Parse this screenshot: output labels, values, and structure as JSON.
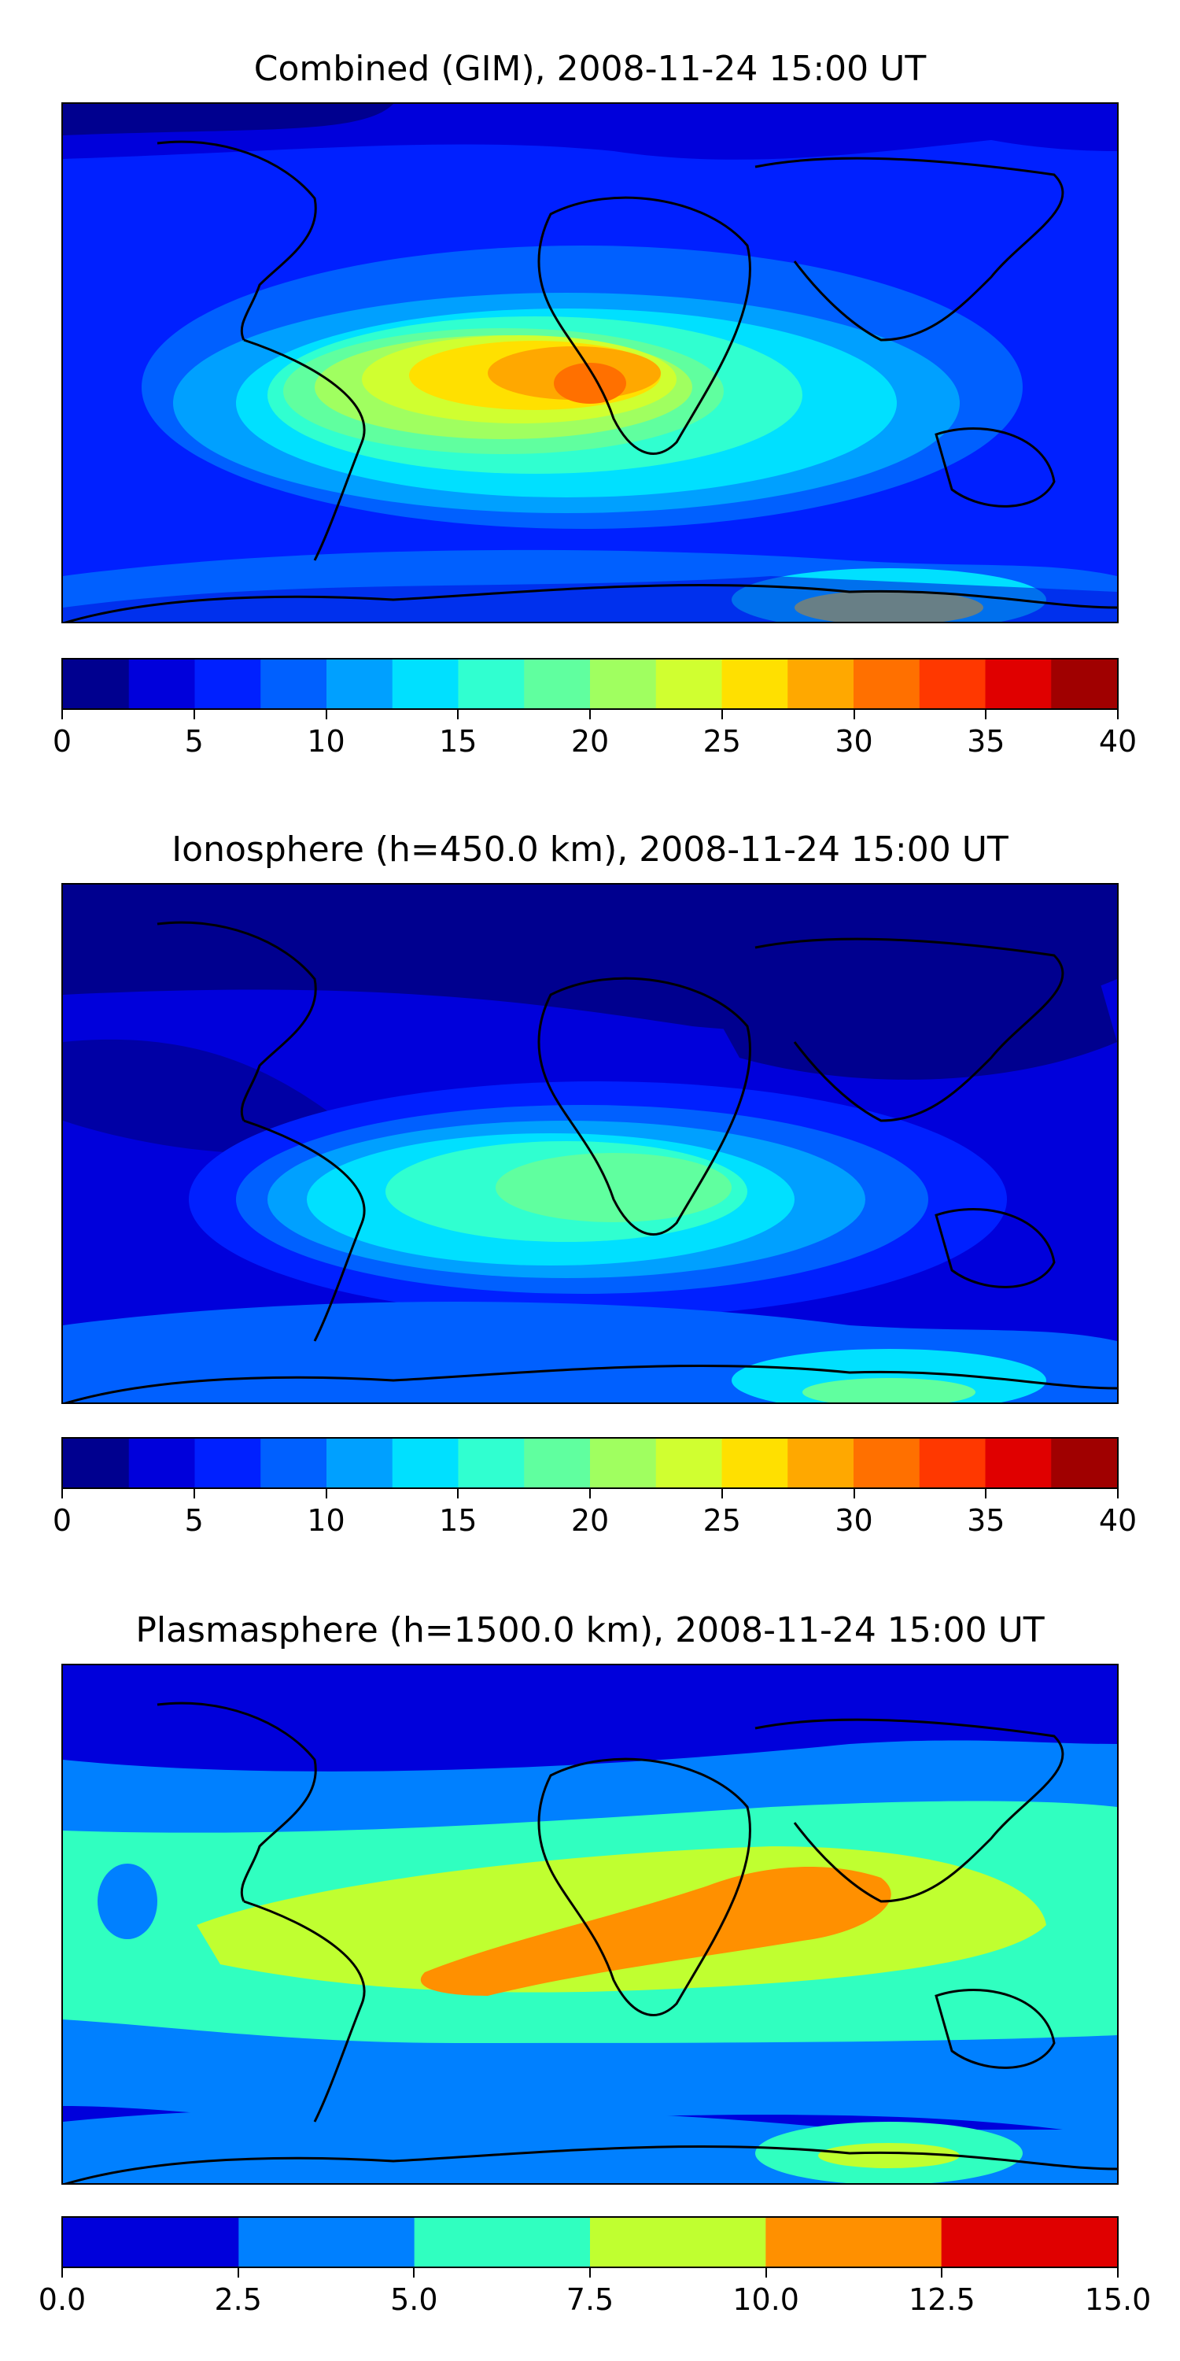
{
  "chart_data": [
    {
      "type": "heatmap",
      "title": "Combined (GIM), 2008-11-24 15:00 UT",
      "colorbar": {
        "levels": [
          0,
          2.5,
          5,
          7.5,
          10,
          12.5,
          15,
          17.5,
          20,
          22.5,
          25,
          27.5,
          30,
          32.5,
          35,
          37.5,
          40
        ],
        "ticks": [
          0,
          5,
          10,
          15,
          20,
          25,
          30,
          35,
          40
        ],
        "tick_labels": [
          "0",
          "5",
          "10",
          "15",
          "20",
          "25",
          "30",
          "35",
          "40"
        ],
        "colors": [
          "#00008f",
          "#0000db",
          "#0020ff",
          "#0060ff",
          "#00a0ff",
          "#00e0ff",
          "#30ffd0",
          "#60ff9f",
          "#a0ff60",
          "#d0ff30",
          "#ffe000",
          "#ffa800",
          "#ff7000",
          "#ff3800",
          "#e00000",
          "#a00000"
        ],
        "placement": "bottom"
      },
      "field_peak_estimates": {
        "max_level": 30,
        "peak_region": "central Africa / equatorial Atlantic"
      }
    },
    {
      "type": "heatmap",
      "title": "Ionosphere  (h=450.0 km), 2008-11-24 15:00 UT",
      "colorbar": {
        "levels": [
          0,
          2.5,
          5,
          7.5,
          10,
          12.5,
          15,
          17.5,
          20,
          22.5,
          25,
          27.5,
          30,
          32.5,
          35,
          37.5,
          40
        ],
        "ticks": [
          0,
          5,
          10,
          15,
          20,
          25,
          30,
          35,
          40
        ],
        "tick_labels": [
          "0",
          "5",
          "10",
          "15",
          "20",
          "25",
          "30",
          "35",
          "40"
        ],
        "colors": [
          "#00008f",
          "#0000db",
          "#0020ff",
          "#0060ff",
          "#00a0ff",
          "#00e0ff",
          "#30ffd0",
          "#60ff9f",
          "#a0ff60",
          "#d0ff30",
          "#ffe000",
          "#ffa800",
          "#ff7000",
          "#ff3800",
          "#e00000",
          "#a00000"
        ],
        "placement": "bottom"
      },
      "field_peak_estimates": {
        "max_level": 17.5,
        "peak_region": "southern Africa / South Atlantic"
      }
    },
    {
      "type": "heatmap",
      "title": "Plasmasphere (h=1500.0 km), 2008-11-24 15:00 UT",
      "colorbar": {
        "levels": [
          0,
          2.5,
          5,
          7.5,
          10,
          12.5,
          15
        ],
        "ticks": [
          0,
          2.5,
          5,
          7.5,
          10,
          12.5,
          15
        ],
        "tick_labels": [
          "0.0",
          "2.5",
          "5.0",
          "7.5",
          "10.0",
          "12.5",
          "15.0"
        ],
        "colors": [
          "#0000db",
          "#0080ff",
          "#30ffc0",
          "#c0ff30",
          "#ff9000",
          "#e00000"
        ],
        "placement": "bottom"
      },
      "field_peak_estimates": {
        "max_level": 10,
        "peak_region": "equatorial band Africa to Indian Ocean"
      }
    }
  ]
}
